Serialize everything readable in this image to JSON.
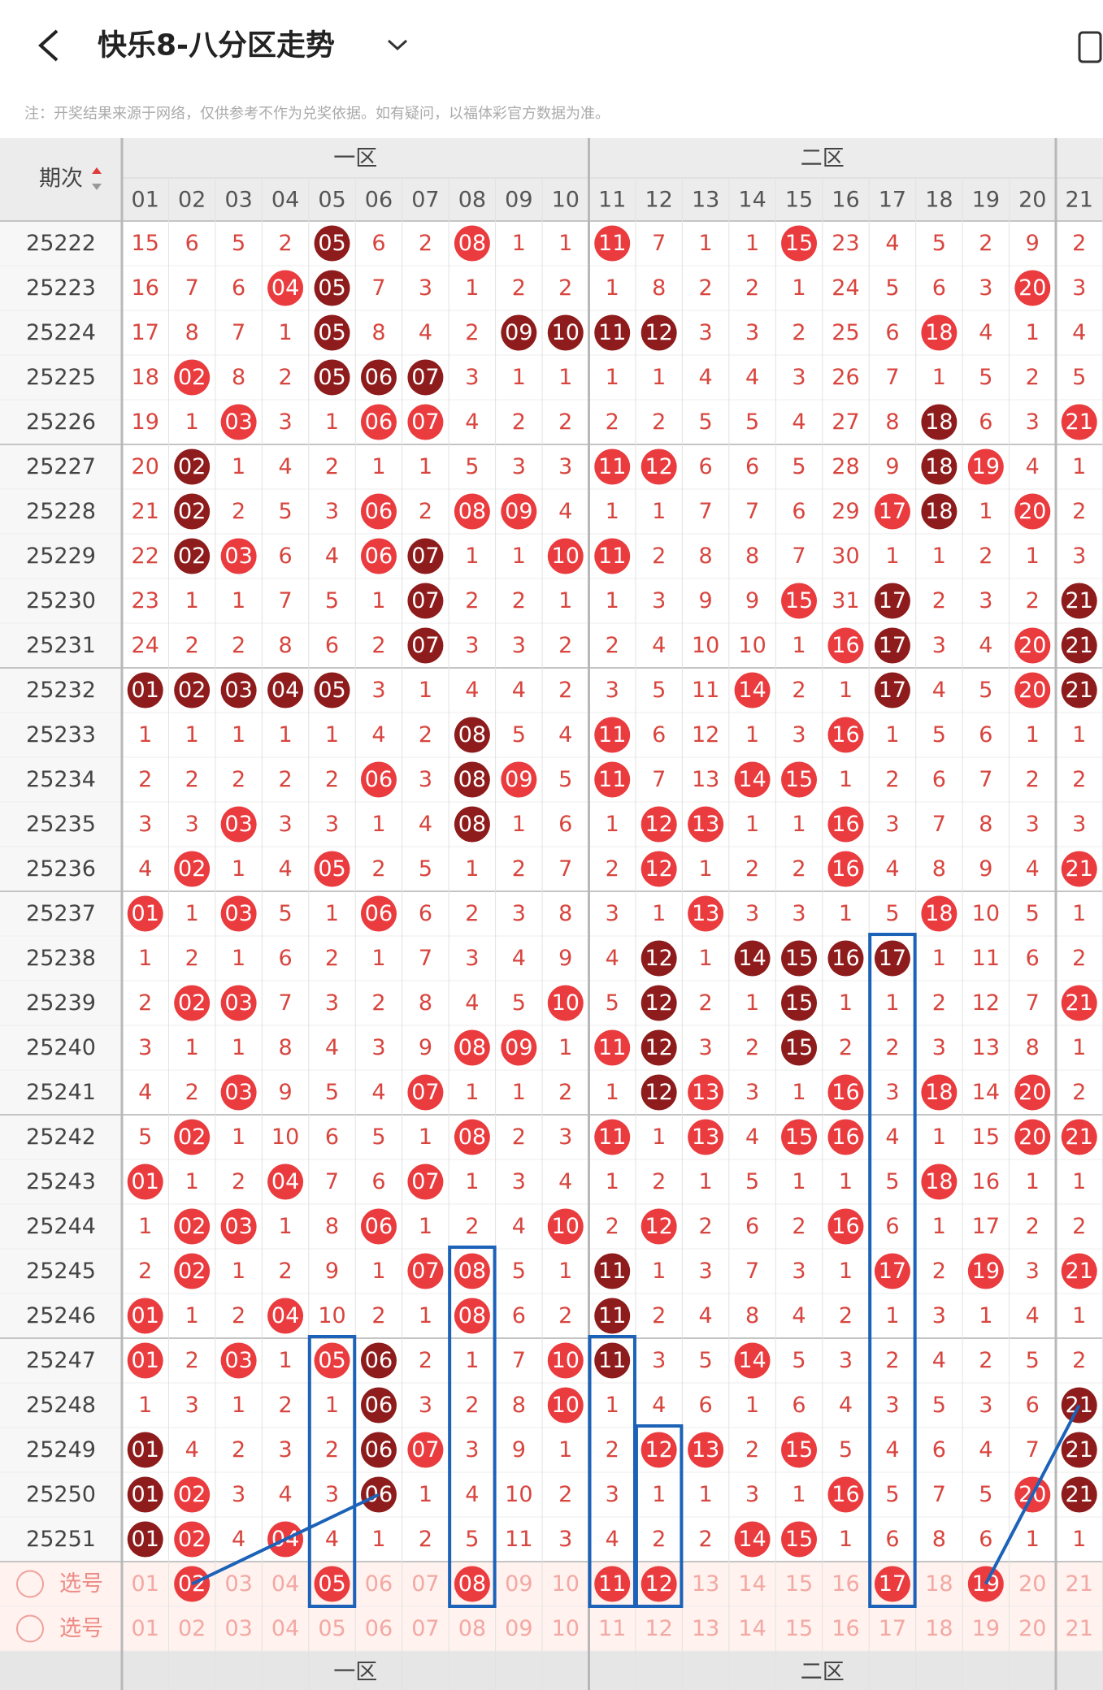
{
  "header": {
    "title": "快乐8-八分区走势",
    "note": "注：开奖结果来源于网络，仅供参考不作为兑奖依据。如有疑问，以福体彩官方数据为准。"
  },
  "table": {
    "period_header": "期次",
    "zones": [
      "一区",
      "二区"
    ],
    "columns": [
      "01",
      "02",
      "03",
      "04",
      "05",
      "06",
      "07",
      "08",
      "09",
      "10",
      "11",
      "12",
      "13",
      "14",
      "15",
      "16",
      "17",
      "18",
      "19",
      "20",
      "21"
    ],
    "rows": [
      {
        "period": "25222",
        "cells": [
          "15",
          "6",
          "5",
          "2",
          "05",
          "6",
          "2",
          "08",
          "1",
          "1",
          "11",
          "7",
          "1",
          "1",
          "15",
          "23",
          "4",
          "5",
          "2",
          "9",
          "2"
        ],
        "dark": [
          4
        ],
        "red": [
          7,
          10,
          14
        ]
      },
      {
        "period": "25223",
        "cells": [
          "16",
          "7",
          "6",
          "04",
          "05",
          "7",
          "3",
          "1",
          "2",
          "2",
          "1",
          "8",
          "2",
          "2",
          "1",
          "24",
          "5",
          "6",
          "3",
          "20",
          "3"
        ],
        "dark": [
          4
        ],
        "red": [
          3,
          19
        ]
      },
      {
        "period": "25224",
        "cells": [
          "17",
          "8",
          "7",
          "1",
          "05",
          "8",
          "4",
          "2",
          "09",
          "10",
          "11",
          "12",
          "3",
          "3",
          "2",
          "25",
          "6",
          "18",
          "4",
          "1",
          "4"
        ],
        "dark": [
          4,
          8,
          9,
          10,
          11
        ],
        "red": [
          17
        ]
      },
      {
        "period": "25225",
        "cells": [
          "18",
          "02",
          "8",
          "2",
          "05",
          "06",
          "07",
          "3",
          "1",
          "1",
          "1",
          "1",
          "4",
          "4",
          "3",
          "26",
          "7",
          "1",
          "5",
          "2",
          "5"
        ],
        "dark": [
          4,
          5,
          6
        ],
        "red": [
          1
        ]
      },
      {
        "period": "25226",
        "cells": [
          "19",
          "1",
          "03",
          "3",
          "1",
          "06",
          "07",
          "4",
          "2",
          "2",
          "2",
          "2",
          "5",
          "5",
          "4",
          "27",
          "8",
          "18",
          "6",
          "3",
          "21"
        ],
        "dark": [
          17
        ],
        "red": [
          2,
          5,
          6,
          20
        ]
      },
      {
        "period": "25227",
        "cells": [
          "20",
          "02",
          "1",
          "4",
          "2",
          "1",
          "1",
          "5",
          "3",
          "3",
          "11",
          "12",
          "6",
          "6",
          "5",
          "28",
          "9",
          "18",
          "19",
          "4",
          "1"
        ],
        "dark": [
          1,
          17
        ],
        "red": [
          10,
          11,
          18
        ]
      },
      {
        "period": "25228",
        "cells": [
          "21",
          "02",
          "2",
          "5",
          "3",
          "06",
          "2",
          "08",
          "09",
          "4",
          "1",
          "1",
          "7",
          "7",
          "6",
          "29",
          "17",
          "18",
          "1",
          "20",
          "2"
        ],
        "dark": [
          1,
          17
        ],
        "red": [
          5,
          7,
          8,
          16,
          19
        ]
      },
      {
        "period": "25229",
        "cells": [
          "22",
          "02",
          "03",
          "6",
          "4",
          "06",
          "07",
          "1",
          "1",
          "10",
          "11",
          "2",
          "8",
          "8",
          "7",
          "30",
          "1",
          "1",
          "2",
          "1",
          "3"
        ],
        "dark": [
          1,
          6
        ],
        "red": [
          2,
          5,
          9,
          10
        ]
      },
      {
        "period": "25230",
        "cells": [
          "23",
          "1",
          "1",
          "7",
          "5",
          "1",
          "07",
          "2",
          "2",
          "1",
          "1",
          "3",
          "9",
          "9",
          "15",
          "31",
          "17",
          "2",
          "3",
          "2",
          "21"
        ],
        "dark": [
          6,
          16,
          20
        ],
        "red": [
          14
        ]
      },
      {
        "period": "25231",
        "cells": [
          "24",
          "2",
          "2",
          "8",
          "6",
          "2",
          "07",
          "3",
          "3",
          "2",
          "2",
          "4",
          "10",
          "10",
          "1",
          "16",
          "17",
          "3",
          "4",
          "20",
          "21"
        ],
        "dark": [
          6,
          16,
          20
        ],
        "red": [
          15,
          19
        ]
      },
      {
        "period": "25232",
        "cells": [
          "01",
          "02",
          "03",
          "04",
          "05",
          "3",
          "1",
          "4",
          "4",
          "2",
          "3",
          "5",
          "11",
          "14",
          "2",
          "1",
          "17",
          "4",
          "5",
          "20",
          "21"
        ],
        "dark": [
          0,
          1,
          2,
          3,
          4,
          16,
          20
        ],
        "red": [
          13,
          19
        ]
      },
      {
        "period": "25233",
        "cells": [
          "1",
          "1",
          "1",
          "1",
          "1",
          "4",
          "2",
          "08",
          "5",
          "4",
          "11",
          "6",
          "12",
          "1",
          "3",
          "16",
          "1",
          "5",
          "6",
          "1",
          "1"
        ],
        "dark": [
          7
        ],
        "red": [
          10,
          15
        ]
      },
      {
        "period": "25234",
        "cells": [
          "2",
          "2",
          "2",
          "2",
          "2",
          "06",
          "3",
          "08",
          "09",
          "5",
          "11",
          "7",
          "13",
          "14",
          "15",
          "1",
          "2",
          "6",
          "7",
          "2",
          "2"
        ],
        "dark": [
          7
        ],
        "red": [
          5,
          8,
          10,
          13,
          14
        ]
      },
      {
        "period": "25235",
        "cells": [
          "3",
          "3",
          "03",
          "3",
          "3",
          "1",
          "4",
          "08",
          "1",
          "6",
          "1",
          "12",
          "13",
          "1",
          "1",
          "16",
          "3",
          "7",
          "8",
          "3",
          "3"
        ],
        "dark": [
          7
        ],
        "red": [
          2,
          11,
          12,
          15
        ]
      },
      {
        "period": "25236",
        "cells": [
          "4",
          "02",
          "1",
          "4",
          "05",
          "2",
          "5",
          "1",
          "2",
          "7",
          "2",
          "12",
          "1",
          "2",
          "2",
          "16",
          "4",
          "8",
          "9",
          "4",
          "21"
        ],
        "dark": [],
        "red": [
          1,
          4,
          11,
          15,
          20
        ]
      },
      {
        "period": "25237",
        "cells": [
          "01",
          "1",
          "03",
          "5",
          "1",
          "06",
          "6",
          "2",
          "3",
          "8",
          "3",
          "1",
          "13",
          "3",
          "3",
          "1",
          "5",
          "18",
          "10",
          "5",
          "1"
        ],
        "dark": [],
        "red": [
          0,
          2,
          5,
          12,
          17
        ]
      },
      {
        "period": "25238",
        "cells": [
          "1",
          "2",
          "1",
          "6",
          "2",
          "1",
          "7",
          "3",
          "4",
          "9",
          "4",
          "12",
          "1",
          "14",
          "15",
          "16",
          "17",
          "1",
          "11",
          "6",
          "2"
        ],
        "dark": [
          11,
          13,
          14,
          15,
          16
        ],
        "red": []
      },
      {
        "period": "25239",
        "cells": [
          "2",
          "02",
          "03",
          "7",
          "3",
          "2",
          "8",
          "4",
          "5",
          "10",
          "5",
          "12",
          "2",
          "1",
          "15",
          "1",
          "1",
          "2",
          "12",
          "7",
          "21"
        ],
        "dark": [
          11,
          14
        ],
        "red": [
          1,
          2,
          9,
          20
        ]
      },
      {
        "period": "25240",
        "cells": [
          "3",
          "1",
          "1",
          "8",
          "4",
          "3",
          "9",
          "08",
          "09",
          "1",
          "11",
          "12",
          "3",
          "2",
          "15",
          "2",
          "2",
          "3",
          "13",
          "8",
          "1"
        ],
        "dark": [
          11,
          14
        ],
        "red": [
          7,
          8,
          10
        ]
      },
      {
        "period": "25241",
        "cells": [
          "4",
          "2",
          "03",
          "9",
          "5",
          "4",
          "07",
          "1",
          "1",
          "2",
          "1",
          "12",
          "13",
          "3",
          "1",
          "16",
          "3",
          "18",
          "14",
          "20",
          "2"
        ],
        "dark": [
          11
        ],
        "red": [
          2,
          6,
          12,
          15,
          17,
          19
        ]
      },
      {
        "period": "25242",
        "cells": [
          "5",
          "02",
          "1",
          "10",
          "6",
          "5",
          "1",
          "08",
          "2",
          "3",
          "11",
          "1",
          "13",
          "4",
          "15",
          "16",
          "4",
          "1",
          "15",
          "20",
          "21"
        ],
        "dark": [],
        "red": [
          1,
          7,
          10,
          12,
          14,
          15,
          19,
          20
        ]
      },
      {
        "period": "25243",
        "cells": [
          "01",
          "1",
          "2",
          "04",
          "7",
          "6",
          "07",
          "1",
          "3",
          "4",
          "1",
          "2",
          "1",
          "5",
          "1",
          "1",
          "5",
          "18",
          "16",
          "1",
          "1"
        ],
        "dark": [],
        "red": [
          0,
          3,
          6,
          17
        ]
      },
      {
        "period": "25244",
        "cells": [
          "1",
          "02",
          "03",
          "1",
          "8",
          "06",
          "1",
          "2",
          "4",
          "10",
          "2",
          "12",
          "2",
          "6",
          "2",
          "16",
          "6",
          "1",
          "17",
          "2",
          "2"
        ],
        "dark": [],
        "red": [
          1,
          2,
          5,
          9,
          11,
          15
        ]
      },
      {
        "period": "25245",
        "cells": [
          "2",
          "02",
          "1",
          "2",
          "9",
          "1",
          "07",
          "08",
          "5",
          "1",
          "11",
          "1",
          "3",
          "7",
          "3",
          "1",
          "17",
          "2",
          "19",
          "3",
          "21"
        ],
        "dark": [
          10
        ],
        "red": [
          1,
          6,
          7,
          16,
          18,
          20
        ]
      },
      {
        "period": "25246",
        "cells": [
          "01",
          "1",
          "2",
          "04",
          "10",
          "2",
          "1",
          "08",
          "6",
          "2",
          "11",
          "2",
          "4",
          "8",
          "4",
          "2",
          "1",
          "3",
          "1",
          "4",
          "1"
        ],
        "dark": [
          10
        ],
        "red": [
          0,
          3,
          7
        ]
      },
      {
        "period": "25247",
        "cells": [
          "01",
          "2",
          "03",
          "1",
          "05",
          "06",
          "2",
          "1",
          "7",
          "10",
          "11",
          "3",
          "5",
          "14",
          "5",
          "3",
          "2",
          "4",
          "2",
          "5",
          "2"
        ],
        "dark": [
          5,
          10
        ],
        "red": [
          0,
          2,
          4,
          9,
          13
        ]
      },
      {
        "period": "25248",
        "cells": [
          "1",
          "3",
          "1",
          "2",
          "1",
          "06",
          "3",
          "2",
          "8",
          "10",
          "1",
          "4",
          "6",
          "1",
          "6",
          "4",
          "3",
          "5",
          "3",
          "6",
          "21"
        ],
        "dark": [
          5,
          20
        ],
        "red": [
          9
        ]
      },
      {
        "period": "25249",
        "cells": [
          "01",
          "4",
          "2",
          "3",
          "2",
          "06",
          "07",
          "3",
          "9",
          "1",
          "2",
          "12",
          "13",
          "2",
          "15",
          "5",
          "4",
          "6",
          "4",
          "7",
          "21"
        ],
        "dark": [
          0,
          5,
          20
        ],
        "red": [
          6,
          11,
          12,
          14
        ]
      },
      {
        "period": "25250",
        "cells": [
          "01",
          "02",
          "3",
          "4",
          "3",
          "06",
          "1",
          "4",
          "10",
          "2",
          "3",
          "1",
          "1",
          "3",
          "1",
          "16",
          "5",
          "7",
          "5",
          "20",
          "21"
        ],
        "dark": [
          0,
          5,
          20
        ],
        "red": [
          1,
          15,
          19
        ]
      },
      {
        "period": "25251",
        "cells": [
          "01",
          "02",
          "4",
          "04",
          "4",
          "1",
          "2",
          "5",
          "11",
          "3",
          "4",
          "2",
          "2",
          "14",
          "15",
          "1",
          "6",
          "8",
          "6",
          "1",
          "1"
        ],
        "dark": [
          0
        ],
        "red": [
          1,
          3,
          13,
          14
        ]
      }
    ],
    "select_rows": [
      {
        "label": "选号",
        "cells": [
          "01",
          "02",
          "03",
          "04",
          "05",
          "06",
          "07",
          "08",
          "09",
          "10",
          "11",
          "12",
          "13",
          "14",
          "15",
          "16",
          "17",
          "18",
          "19",
          "20",
          "21"
        ],
        "red": [
          1,
          4,
          7,
          10,
          11,
          16,
          18
        ]
      },
      {
        "label": "选号",
        "cells": [
          "01",
          "02",
          "03",
          "04",
          "05",
          "06",
          "07",
          "08",
          "09",
          "10",
          "11",
          "12",
          "13",
          "14",
          "15",
          "16",
          "17",
          "18",
          "19",
          "20",
          "21"
        ],
        "red": []
      }
    ],
    "footer_zones": [
      "一区",
      "二区"
    ]
  }
}
